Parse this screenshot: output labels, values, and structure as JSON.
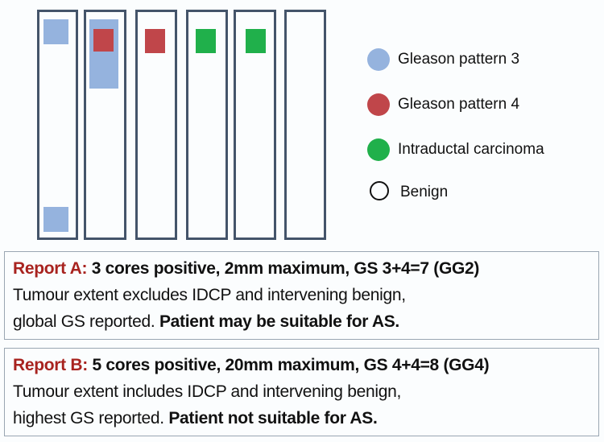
{
  "colors": {
    "gleason3": "#95b3de",
    "gleason4": "#c0464a",
    "idc": "#20b04b",
    "core_border": "#44546a",
    "report_label": "#a8231f"
  },
  "legend": [
    {
      "label": "Gleason pattern 3",
      "symbol": "filled-circle",
      "color": "#95b3de"
    },
    {
      "label": "Gleason pattern 4",
      "symbol": "filled-circle",
      "color": "#c0464a"
    },
    {
      "label": "Intraductal carcinoma",
      "symbol": "filled-circle",
      "color": "#20b04b"
    },
    {
      "label": "Benign",
      "symbol": "open-circle"
    }
  ],
  "reports": [
    {
      "title": "Report A:",
      "summary": "3 cores positive, 2mm maximum, GS 3+4=7 (GG2)",
      "line2": "Tumour extent excludes IDCP and intervening benign,",
      "line3_plain": "global GS reported.",
      "line3_bold": "Patient may be suitable for AS."
    },
    {
      "title": "Report B:",
      "summary": "5 cores positive, 20mm maximum, GS 4+4=8 (GG4)",
      "line2": "Tumour extent includes IDCP and intervening benign,",
      "line3_plain": "highest GS reported.",
      "line3_bold": "Patient not suitable for AS."
    }
  ]
}
